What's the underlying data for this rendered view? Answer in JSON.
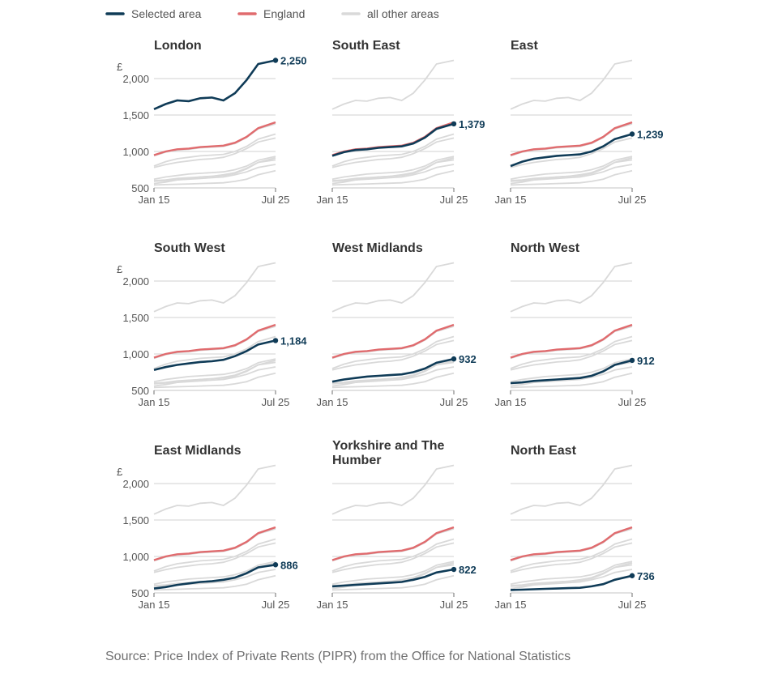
{
  "legend": {
    "selected": "Selected area",
    "england": "England",
    "others": "all other areas"
  },
  "source": "Source: Price Index of Private Rents (PIPR) from the Office for National Statistics",
  "colors": {
    "selected": "#0f3b57",
    "england": "#e06b6e",
    "others": "#d9d9d9",
    "grid": "#d0d0d0",
    "axis": "#6e6e6e"
  },
  "chart_data": {
    "type": "line",
    "layout": "small-multiples",
    "y_unit": "£",
    "ylim": [
      500,
      2300
    ],
    "yticks": [
      500,
      1000,
      1500,
      2000
    ],
    "ytick_labels": [
      "500",
      "1,000",
      "1,500",
      "2,000"
    ],
    "xlim": [
      "2015-01",
      "2025-07"
    ],
    "xtick_labels": [
      "Jan 15",
      "Jul 25"
    ],
    "grid": true,
    "legend_position": "top-left",
    "x_years": [
      2015,
      2016,
      2017,
      2018,
      2019,
      2020,
      2021,
      2022,
      2023,
      2024,
      2025.5
    ],
    "england": [
      950,
      1000,
      1030,
      1040,
      1060,
      1070,
      1080,
      1120,
      1200,
      1320,
      1400
    ],
    "series": [
      {
        "name": "London",
        "values": [
          1580,
          1650,
          1700,
          1690,
          1730,
          1740,
          1700,
          1800,
          1980,
          2200,
          2250
        ],
        "end_label": "2,250"
      },
      {
        "name": "South East",
        "values": [
          940,
          990,
          1020,
          1030,
          1050,
          1060,
          1070,
          1110,
          1190,
          1310,
          1379
        ],
        "end_label": "1,379"
      },
      {
        "name": "East",
        "values": [
          800,
          860,
          900,
          920,
          940,
          950,
          960,
          1000,
          1070,
          1170,
          1239
        ],
        "end_label": "1,239"
      },
      {
        "name": "South West",
        "values": [
          780,
          820,
          850,
          870,
          890,
          900,
          920,
          970,
          1040,
          1130,
          1184
        ],
        "end_label": "1,184"
      },
      {
        "name": "West Midlands",
        "values": [
          620,
          650,
          670,
          690,
          700,
          710,
          720,
          750,
          800,
          880,
          932
        ],
        "end_label": "932"
      },
      {
        "name": "North West",
        "values": [
          600,
          610,
          630,
          640,
          650,
          660,
          670,
          700,
          760,
          850,
          912
        ],
        "end_label": "912"
      },
      {
        "name": "East Midlands",
        "values": [
          560,
          580,
          610,
          630,
          650,
          660,
          680,
          710,
          770,
          850,
          886
        ],
        "end_label": "886"
      },
      {
        "name": "Yorkshire and The Humber",
        "values": [
          590,
          600,
          610,
          620,
          630,
          640,
          650,
          680,
          720,
          780,
          822
        ],
        "end_label": "822"
      },
      {
        "name": "North East",
        "values": [
          540,
          545,
          550,
          555,
          560,
          565,
          570,
          590,
          620,
          680,
          736
        ],
        "end_label": "736"
      }
    ]
  }
}
